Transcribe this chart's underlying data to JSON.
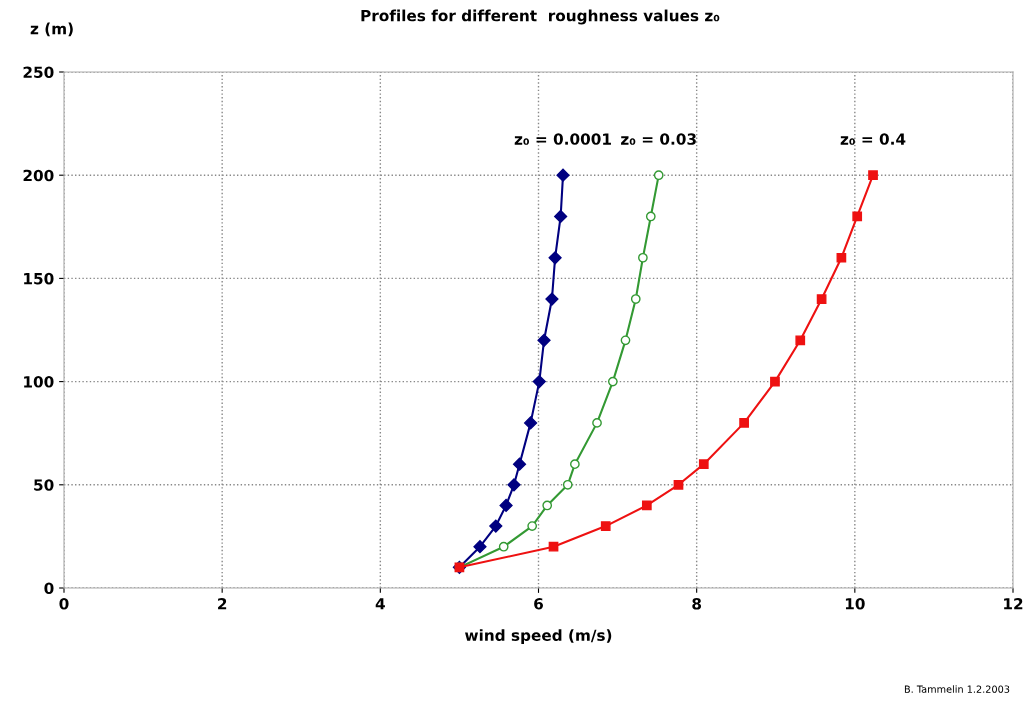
{
  "chart_data": {
    "type": "line",
    "title": "Profiles for different  roughness values z₀",
    "xlabel": "wind speed (m/s)",
    "ylabel": "z (m)",
    "annotations": [
      "B. Tammelin 1.2.2003"
    ],
    "series": [
      {
        "name": "z₀ = 0.0001",
        "color": "#000080",
        "marker": "diamond",
        "x": [
          5.0,
          5.26,
          5.46,
          5.59,
          5.69,
          5.76,
          5.9,
          6.01,
          6.07,
          6.17,
          6.21,
          6.28,
          6.31
        ],
        "values": [
          10,
          20,
          30,
          40,
          50,
          60,
          80,
          100,
          120,
          140,
          160,
          180,
          200
        ]
      },
      {
        "name": "z₀ = 0.03",
        "color": "#339933",
        "marker": "circle",
        "x": [
          5.0,
          5.56,
          5.92,
          6.11,
          6.37,
          6.46,
          6.74,
          6.94,
          7.1,
          7.23,
          7.32,
          7.42,
          7.52
        ],
        "values": [
          10,
          20,
          30,
          40,
          50,
          60,
          80,
          100,
          120,
          140,
          160,
          180,
          200
        ]
      },
      {
        "name": "z₀ = 0.4",
        "color": "#ee1111",
        "marker": "square",
        "x": [
          5.0,
          6.19,
          6.85,
          7.37,
          7.77,
          8.09,
          8.6,
          8.99,
          9.31,
          9.58,
          9.83,
          10.03,
          10.23
        ],
        "values": [
          10,
          20,
          30,
          40,
          50,
          60,
          80,
          100,
          120,
          140,
          160,
          180,
          200
        ]
      }
    ],
    "xlim": [
      0,
      12
    ],
    "xticks": [
      0,
      2,
      4,
      6,
      8,
      10,
      12
    ],
    "ylim": [
      0,
      250
    ],
    "yticks": [
      0,
      50,
      100,
      150,
      200,
      250
    ],
    "grid": true,
    "line_style": "solid"
  }
}
